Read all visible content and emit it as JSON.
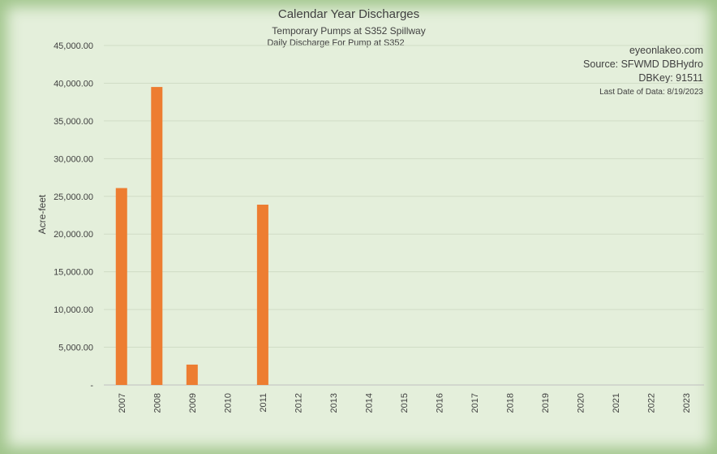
{
  "chart_data": {
    "type": "bar",
    "title": "Calendar Year Discharges",
    "subtitle": "Temporary Pumps at S352 Spillway",
    "subtitle2": "Daily Discharge For Pump at S352",
    "xlabel": "",
    "ylabel": "Acre-feet",
    "ylim": [
      0,
      45000
    ],
    "grid": true,
    "legend": "none",
    "bar_color": "#ed7d31",
    "categories": [
      "2007",
      "2008",
      "2009",
      "2010",
      "2011",
      "2012",
      "2013",
      "2014",
      "2015",
      "2016",
      "2017",
      "2018",
      "2019",
      "2020",
      "2021",
      "2022",
      "2023"
    ],
    "values": [
      26100,
      39500,
      2700,
      0,
      23900,
      0,
      0,
      0,
      0,
      0,
      0,
      0,
      0,
      0,
      0,
      0,
      0
    ],
    "y_ticks": [
      {
        "value": 0,
        "label": "-"
      },
      {
        "value": 5000,
        "label": "5,000.00"
      },
      {
        "value": 10000,
        "label": "10,000.00"
      },
      {
        "value": 15000,
        "label": "15,000.00"
      },
      {
        "value": 20000,
        "label": "20,000.00"
      },
      {
        "value": 25000,
        "label": "25,000.00"
      },
      {
        "value": 30000,
        "label": "30,000.00"
      },
      {
        "value": 35000,
        "label": "35,000.00"
      },
      {
        "value": 40000,
        "label": "40,000.00"
      },
      {
        "value": 45000,
        "label": "45,000.00"
      }
    ]
  },
  "annotations": {
    "site": "eyeonlakeo.com",
    "source": "Source: SFWMD DBHydro",
    "dbkey": "DBKey: 91511",
    "last_date": "Last Date of Data: 8/19/2023"
  }
}
